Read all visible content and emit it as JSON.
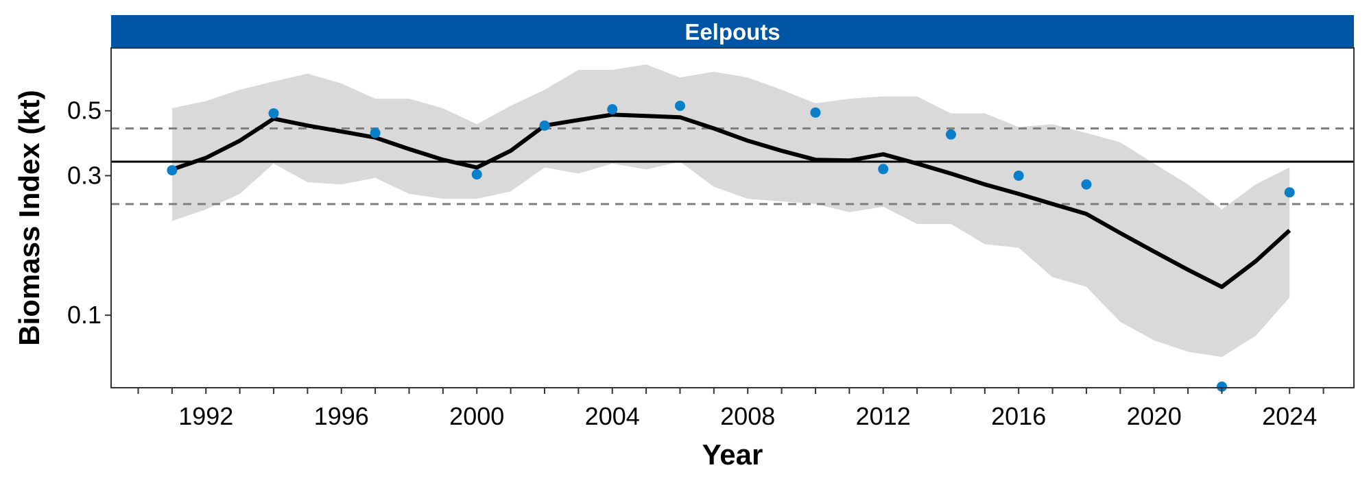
{
  "chart_data": {
    "type": "line",
    "title": "Eelpouts",
    "xlabel": "Year",
    "ylabel": "Biomass Index (kt)",
    "y_scale": "log",
    "ylim": [
      0.0565,
      0.82
    ],
    "xlim": [
      1989.2,
      2025.9
    ],
    "x_ticks": [
      1992,
      1996,
      2000,
      2004,
      2008,
      2012,
      2016,
      2020,
      2024
    ],
    "y_ticks": [
      0.1,
      0.3,
      0.5
    ],
    "y_tick_labels": [
      "0.1",
      "0.3",
      "0.5"
    ],
    "grid": false,
    "legend": "none",
    "series": [
      {
        "kind": "band",
        "x": [
          1991,
          1992,
          1993,
          1994,
          1995,
          1996,
          1997,
          1998,
          1999,
          2000,
          2001,
          2002,
          2003,
          2004,
          2005,
          2006,
          2007,
          2008,
          2009,
          2010,
          2011,
          2012,
          2013,
          2014,
          2015,
          2016,
          2017,
          2018,
          2019,
          2020,
          2021,
          2022,
          2023,
          2024
        ],
        "lower": [
          0.21,
          0.23,
          0.26,
          0.33,
          0.285,
          0.28,
          0.295,
          0.26,
          0.25,
          0.25,
          0.265,
          0.32,
          0.305,
          0.33,
          0.315,
          0.335,
          0.275,
          0.25,
          0.245,
          0.24,
          0.225,
          0.235,
          0.205,
          0.205,
          0.175,
          0.17,
          0.135,
          0.125,
          0.095,
          0.082,
          0.075,
          0.072,
          0.085,
          0.115
        ],
        "upper": [
          0.51,
          0.54,
          0.59,
          0.63,
          0.67,
          0.62,
          0.55,
          0.55,
          0.51,
          0.45,
          0.52,
          0.59,
          0.69,
          0.69,
          0.72,
          0.65,
          0.68,
          0.65,
          0.59,
          0.53,
          0.55,
          0.56,
          0.56,
          0.49,
          0.49,
          0.44,
          0.45,
          0.42,
          0.39,
          0.33,
          0.28,
          0.23,
          0.28,
          0.32
        ]
      },
      {
        "kind": "line",
        "x": [
          1991,
          1992,
          1993,
          1994,
          1995,
          1996,
          1997,
          1998,
          1999,
          2000,
          2001,
          2002,
          2003,
          2004,
          2005,
          2006,
          2007,
          2008,
          2009,
          2010,
          2011,
          2012,
          2013,
          2014,
          2015,
          2016,
          2017,
          2018,
          2019,
          2020,
          2021,
          2022,
          2023,
          2024
        ],
        "y": [
          0.315,
          0.345,
          0.395,
          0.47,
          0.445,
          0.425,
          0.405,
          0.37,
          0.34,
          0.32,
          0.365,
          0.445,
          0.465,
          0.485,
          0.48,
          0.475,
          0.435,
          0.395,
          0.365,
          0.34,
          0.338,
          0.355,
          0.33,
          0.305,
          0.28,
          0.26,
          0.24,
          0.222,
          0.191,
          0.165,
          0.143,
          0.125,
          0.153,
          0.195
        ]
      },
      {
        "kind": "points",
        "x": [
          1991,
          1994,
          1997,
          2000,
          2002,
          2004,
          2006,
          2010,
          2012,
          2014,
          2016,
          2018,
          2022,
          2024
        ],
        "y": [
          0.313,
          0.49,
          0.42,
          0.303,
          0.445,
          0.506,
          0.52,
          0.493,
          0.316,
          0.415,
          0.3,
          0.28,
          0.057,
          0.263
        ]
      }
    ],
    "reference_lines": [
      {
        "y": 0.335,
        "style": "solid"
      },
      {
        "y": 0.435,
        "style": "dashed"
      },
      {
        "y": 0.24,
        "style": "dashed"
      }
    ],
    "colors": {
      "strip": "#0055a4",
      "band": "#d9d9d9",
      "line": "#000000",
      "points": "#0a7fc9",
      "dashed": "#808080"
    }
  }
}
